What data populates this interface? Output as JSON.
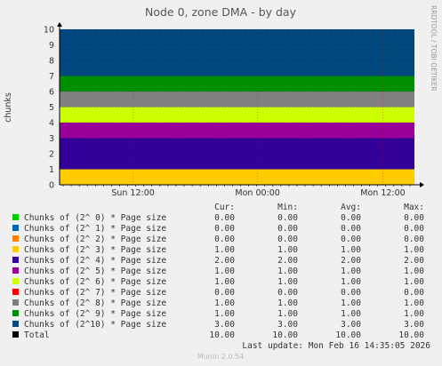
{
  "chart_data": {
    "type": "area",
    "title": "Node 0, zone DMA - by day",
    "ylabel": "chunks",
    "ylim": [
      0,
      10
    ],
    "yticks": [
      0,
      1,
      2,
      3,
      4,
      5,
      6,
      7,
      8,
      9,
      10
    ],
    "xtick_labels": [
      "Sun 12:00",
      "Mon 00:00",
      "Mon 12:00"
    ],
    "grid": true,
    "stacked": true,
    "columns": [
      "Cur:",
      "Min:",
      "Avg:",
      "Max:"
    ],
    "series": [
      {
        "name": "Chunks of (2^ 0) * Page size",
        "color": "#00cc00",
        "value": 0,
        "cur": "0.00",
        "min": "0.00",
        "avg": "0.00",
        "max": "0.00"
      },
      {
        "name": "Chunks of (2^ 1) * Page size",
        "color": "#0066b3",
        "value": 0,
        "cur": "0.00",
        "min": "0.00",
        "avg": "0.00",
        "max": "0.00"
      },
      {
        "name": "Chunks of (2^ 2) * Page size",
        "color": "#ff8000",
        "value": 0,
        "cur": "0.00",
        "min": "0.00",
        "avg": "0.00",
        "max": "0.00"
      },
      {
        "name": "Chunks of (2^ 3) * Page size",
        "color": "#ffcc00",
        "value": 1,
        "cur": "1.00",
        "min": "1.00",
        "avg": "1.00",
        "max": "1.00"
      },
      {
        "name": "Chunks of (2^ 4) * Page size",
        "color": "#330099",
        "value": 2,
        "cur": "2.00",
        "min": "2.00",
        "avg": "2.00",
        "max": "2.00"
      },
      {
        "name": "Chunks of (2^ 5) * Page size",
        "color": "#990099",
        "value": 1,
        "cur": "1.00",
        "min": "1.00",
        "avg": "1.00",
        "max": "1.00"
      },
      {
        "name": "Chunks of (2^ 6) * Page size",
        "color": "#ccff00",
        "value": 1,
        "cur": "1.00",
        "min": "1.00",
        "avg": "1.00",
        "max": "1.00"
      },
      {
        "name": "Chunks of (2^ 7) * Page size",
        "color": "#ff0000",
        "value": 0,
        "cur": "0.00",
        "min": "0.00",
        "avg": "0.00",
        "max": "0.00"
      },
      {
        "name": "Chunks of (2^ 8) * Page size",
        "color": "#808080",
        "value": 1,
        "cur": "1.00",
        "min": "1.00",
        "avg": "1.00",
        "max": "1.00"
      },
      {
        "name": "Chunks of (2^ 9) * Page size",
        "color": "#008f00",
        "value": 1,
        "cur": "1.00",
        "min": "1.00",
        "avg": "1.00",
        "max": "1.00"
      },
      {
        "name": "Chunks of (2^10) * Page size",
        "color": "#00487d",
        "value": 3,
        "cur": "3.00",
        "min": "3.00",
        "avg": "3.00",
        "max": "3.00"
      },
      {
        "name": "Total",
        "color": "#000000",
        "value": 10,
        "is_total": true,
        "cur": "10.00",
        "min": "10.00",
        "avg": "10.00",
        "max": "10.00"
      }
    ],
    "last_update": "Last update: Mon Feb 16 14:35:05 2026",
    "side_label": "RRDTOOL / TOBI OETIKER",
    "footer": "Munin 2.0.54"
  }
}
